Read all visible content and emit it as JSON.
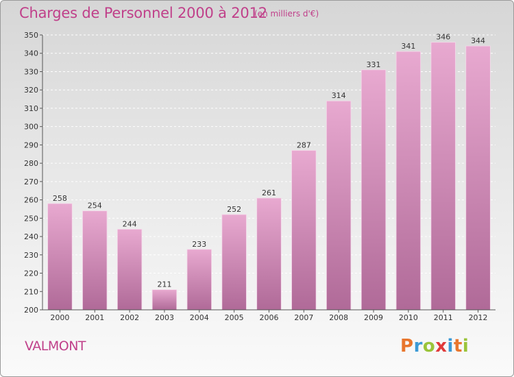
{
  "chart_data": {
    "type": "bar",
    "title": "Charges de Personnel 2000 à 2012",
    "subtitle": "(en milliers d'€)",
    "categories": [
      "2000",
      "2001",
      "2002",
      "2003",
      "2004",
      "2005",
      "2006",
      "2007",
      "2008",
      "2009",
      "2010",
      "2011",
      "2012"
    ],
    "values": [
      258,
      254,
      244,
      211,
      233,
      252,
      261,
      287,
      314,
      331,
      341,
      346,
      344
    ],
    "ylim": [
      200,
      350
    ],
    "yticks": [
      200,
      210,
      220,
      230,
      240,
      250,
      260,
      270,
      280,
      290,
      300,
      310,
      320,
      330,
      340,
      350
    ],
    "grid": true,
    "legend": "none",
    "colors": {
      "bar_light": "#e8a9d0",
      "bar_dark": "#b06a98",
      "grid": "#ffffff",
      "title": "#c0408a"
    }
  },
  "footer": {
    "commune": "VALMONT",
    "brand": "Proxiti",
    "brand_letter_colors": [
      "#e8762d",
      "#3c9ad6",
      "#9ac43a",
      "#e03a3a",
      "#3c9ad6",
      "#e8762d",
      "#9ac43a"
    ]
  }
}
